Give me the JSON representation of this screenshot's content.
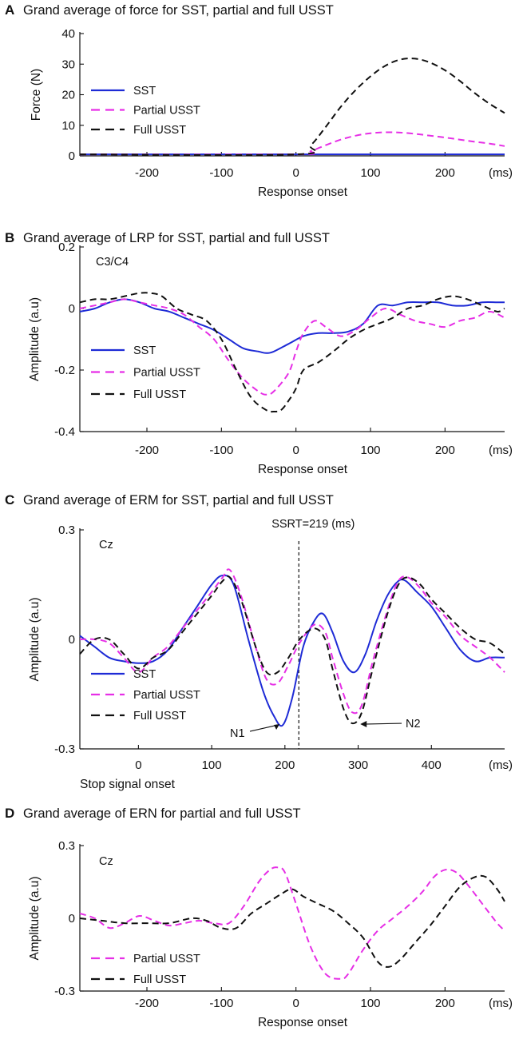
{
  "chart_data": [
    {
      "type": "line",
      "letter": "A",
      "title": "Grand average of force for SST, partial and full USST",
      "xlabel": "Response onset",
      "ylabel": "Force (N)",
      "x_unit": "(ms)",
      "xlim": [
        -290,
        280
      ],
      "ylim": [
        0,
        40
      ],
      "xticks": [
        -200,
        -100,
        0,
        100,
        200
      ],
      "xtick_labels": [
        "-200",
        "-100",
        "0",
        "100",
        "200"
      ],
      "yticks": [
        0,
        10,
        20,
        30,
        40
      ],
      "ytick_labels": [
        "0",
        "10",
        "20",
        "30",
        "40"
      ],
      "legend": [
        "SST",
        "Partial USST",
        "Full USST"
      ],
      "series": [
        {
          "name": "SST",
          "color": "#1e2bd6",
          "dash": "solid",
          "x": [
            -290,
            280
          ],
          "y": [
            0.5,
            0.5
          ]
        },
        {
          "name": "Partial USST",
          "color": "#e62fe6",
          "dash": "dashed",
          "x": [
            -290,
            0,
            20,
            40,
            60,
            80,
            100,
            120,
            140,
            160,
            180,
            200,
            220,
            240,
            260,
            280
          ],
          "y": [
            0.5,
            0.5,
            1.6,
            3.5,
            5.3,
            6.6,
            7.4,
            7.7,
            7.6,
            7.2,
            6.6,
            6.0,
            5.3,
            4.6,
            4.0,
            3.2
          ]
        },
        {
          "name": "Full USST",
          "color": "#111111",
          "dash": "dashed",
          "x": [
            -290,
            0,
            20,
            40,
            60,
            80,
            100,
            120,
            140,
            160,
            180,
            200,
            220,
            240,
            260,
            280
          ],
          "y": [
            0.5,
            0.5,
            3.5,
            9.5,
            16,
            21.5,
            26,
            29.5,
            31.5,
            31.8,
            30.5,
            28,
            24.5,
            20.5,
            17,
            14
          ]
        }
      ]
    },
    {
      "type": "line",
      "letter": "B",
      "title": "Grand average of LRP for SST, partial and full USST",
      "xlabel": "Response onset",
      "ylabel": "Amplitude (a.u)",
      "x_unit": "(ms)",
      "annotation": "C3/C4",
      "xlim": [
        -290,
        280
      ],
      "ylim": [
        -0.4,
        0.2
      ],
      "xticks": [
        -200,
        -100,
        0,
        100,
        200
      ],
      "xtick_labels": [
        "-200",
        "-100",
        "0",
        "100",
        "200"
      ],
      "yticks": [
        -0.4,
        -0.2,
        0,
        0.2
      ],
      "ytick_labels": [
        "-0.4",
        "-0.2",
        "0",
        "0.2"
      ],
      "legend": [
        "SST",
        "Partial USST",
        "Full USST"
      ],
      "series": [
        {
          "name": "SST",
          "color": "#1e2bd6",
          "dash": "solid",
          "x": [
            -290,
            -270,
            -250,
            -230,
            -210,
            -190,
            -170,
            -150,
            -130,
            -110,
            -90,
            -70,
            -50,
            -40,
            -30,
            -10,
            10,
            30,
            50,
            70,
            90,
            110,
            130,
            150,
            170,
            190,
            210,
            230,
            250,
            270,
            280
          ],
          "y": [
            -0.01,
            0.0,
            0.02,
            0.03,
            0.02,
            0.0,
            -0.01,
            -0.03,
            -0.05,
            -0.07,
            -0.1,
            -0.13,
            -0.14,
            -0.145,
            -0.14,
            -0.115,
            -0.09,
            -0.08,
            -0.08,
            -0.075,
            -0.05,
            0.01,
            0.01,
            0.02,
            0.02,
            0.02,
            0.01,
            0.01,
            0.02,
            0.02,
            0.02
          ]
        },
        {
          "name": "Partial USST",
          "color": "#e62fe6",
          "dash": "dashed",
          "x": [
            -290,
            -270,
            -250,
            -230,
            -210,
            -190,
            -170,
            -150,
            -130,
            -110,
            -90,
            -70,
            -50,
            -40,
            -30,
            -10,
            0,
            10,
            25,
            40,
            60,
            80,
            100,
            120,
            140,
            160,
            180,
            200,
            220,
            240,
            260,
            280
          ],
          "y": [
            0.0,
            0.01,
            0.02,
            0.03,
            0.02,
            0.01,
            0.0,
            -0.02,
            -0.06,
            -0.1,
            -0.17,
            -0.23,
            -0.27,
            -0.28,
            -0.27,
            -0.21,
            -0.14,
            -0.08,
            -0.04,
            -0.06,
            -0.09,
            -0.07,
            -0.03,
            0.0,
            -0.02,
            -0.04,
            -0.05,
            -0.06,
            -0.04,
            -0.03,
            -0.01,
            -0.03
          ]
        },
        {
          "name": "Full USST",
          "color": "#111111",
          "dash": "dashed",
          "x": [
            -290,
            -270,
            -250,
            -230,
            -210,
            -195,
            -180,
            -160,
            -140,
            -120,
            -100,
            -80,
            -60,
            -40,
            -30,
            -20,
            -10,
            0,
            10,
            30,
            50,
            70,
            90,
            110,
            130,
            150,
            170,
            190,
            210,
            230,
            250,
            270,
            280
          ],
          "y": [
            0.02,
            0.03,
            0.03,
            0.04,
            0.05,
            0.05,
            0.04,
            0.0,
            -0.02,
            -0.04,
            -0.1,
            -0.2,
            -0.29,
            -0.33,
            -0.335,
            -0.33,
            -0.3,
            -0.26,
            -0.2,
            -0.175,
            -0.14,
            -0.1,
            -0.07,
            -0.05,
            -0.03,
            0.0,
            0.01,
            0.03,
            0.04,
            0.03,
            0.01,
            -0.01,
            0.0
          ]
        }
      ]
    },
    {
      "type": "line",
      "letter": "C",
      "title": "Grand average of ERM for SST, partial and full USST",
      "xlabel": "Stop signal onset",
      "ylabel": "Amplitude (a.u)",
      "x_unit": "(ms)",
      "annotation": "Cz",
      "vline": {
        "x": 219,
        "label": "SSRT=219 (ms)"
      },
      "peak_labels": [
        {
          "label": "N1",
          "x": 197,
          "y": -0.23
        },
        {
          "label": "N2",
          "x": 292,
          "y": -0.23
        }
      ],
      "xlim": [
        -80,
        500
      ],
      "ylim": [
        -0.3,
        0.3
      ],
      "xticks": [
        0,
        100,
        200,
        300,
        400
      ],
      "xtick_labels": [
        "0",
        "100",
        "200",
        "300",
        "400"
      ],
      "yticks": [
        -0.3,
        0,
        0.3
      ],
      "ytick_labels": [
        "-0.3",
        "0",
        "0.3"
      ],
      "legend": [
        "SST",
        "Partial USST",
        "Full USST"
      ],
      "series": [
        {
          "name": "SST",
          "color": "#1e2bd6",
          "dash": "solid",
          "x": [
            -80,
            -60,
            -40,
            -20,
            0,
            20,
            40,
            60,
            80,
            100,
            115,
            130,
            150,
            170,
            185,
            197,
            210,
            225,
            240,
            252,
            265,
            280,
            295,
            310,
            325,
            340,
            355,
            365,
            380,
            400,
            420,
            440,
            460,
            480,
            500
          ],
          "y": [
            0.01,
            -0.02,
            -0.05,
            -0.06,
            -0.065,
            -0.06,
            -0.03,
            0.03,
            0.09,
            0.15,
            0.175,
            0.15,
            0.0,
            -0.14,
            -0.21,
            -0.235,
            -0.16,
            -0.02,
            0.05,
            0.07,
            0.02,
            -0.06,
            -0.09,
            -0.04,
            0.05,
            0.12,
            0.16,
            0.16,
            0.13,
            0.09,
            0.03,
            -0.03,
            -0.06,
            -0.05,
            -0.05
          ]
        },
        {
          "name": "Partial USST",
          "color": "#e62fe6",
          "dash": "dashed",
          "x": [
            -80,
            -60,
            -40,
            -20,
            0,
            20,
            40,
            60,
            80,
            100,
            115,
            125,
            140,
            160,
            175,
            190,
            205,
            220,
            240,
            255,
            265,
            280,
            292,
            305,
            320,
            340,
            355,
            368,
            385,
            400,
            420,
            440,
            460,
            480,
            500
          ],
          "y": [
            0.0,
            0.0,
            -0.01,
            -0.05,
            -0.09,
            -0.05,
            -0.02,
            0.03,
            0.08,
            0.13,
            0.17,
            0.19,
            0.12,
            -0.02,
            -0.11,
            -0.12,
            -0.07,
            -0.01,
            0.04,
            0.02,
            -0.05,
            -0.15,
            -0.2,
            -0.18,
            -0.06,
            0.08,
            0.16,
            0.17,
            0.14,
            0.1,
            0.06,
            0.01,
            -0.02,
            -0.05,
            -0.09
          ]
        },
        {
          "name": "Full USST",
          "color": "#111111",
          "dash": "dashed",
          "x": [
            -80,
            -60,
            -40,
            -20,
            0,
            20,
            40,
            60,
            80,
            100,
            115,
            125,
            140,
            160,
            175,
            190,
            205,
            220,
            240,
            255,
            265,
            280,
            292,
            305,
            320,
            340,
            355,
            368,
            385,
            400,
            420,
            440,
            460,
            480,
            500
          ],
          "y": [
            -0.04,
            0.0,
            0.0,
            -0.04,
            -0.08,
            -0.05,
            -0.03,
            0.02,
            0.07,
            0.12,
            0.16,
            0.17,
            0.11,
            -0.02,
            -0.09,
            -0.09,
            -0.05,
            0.0,
            0.03,
            0.0,
            -0.08,
            -0.19,
            -0.23,
            -0.2,
            -0.08,
            0.07,
            0.15,
            0.17,
            0.15,
            0.11,
            0.07,
            0.03,
            0.0,
            -0.01,
            -0.04
          ]
        }
      ]
    },
    {
      "type": "line",
      "letter": "D",
      "title": "Grand average of ERN for partial and full USST",
      "xlabel": "Response onset",
      "ylabel": "Amplitude (a.u)",
      "x_unit": "(ms)",
      "annotation": "Cz",
      "xlim": [
        -290,
        280
      ],
      "ylim": [
        -0.3,
        0.3
      ],
      "xticks": [
        -200,
        -100,
        0,
        100,
        200
      ],
      "xtick_labels": [
        "-200",
        "-100",
        "0",
        "100",
        "200"
      ],
      "yticks": [
        -0.3,
        0,
        0.3
      ],
      "ytick_labels": [
        "-0.3",
        "0",
        "0.3"
      ],
      "legend": [
        "Partial USST",
        "Full USST"
      ],
      "series": [
        {
          "name": "Partial USST",
          "color": "#e62fe6",
          "dash": "dashed",
          "x": [
            -290,
            -270,
            -250,
            -230,
            -210,
            -190,
            -170,
            -150,
            -130,
            -110,
            -90,
            -70,
            -50,
            -35,
            -25,
            -15,
            0,
            20,
            40,
            60,
            70,
            90,
            110,
            130,
            150,
            170,
            185,
            200,
            215,
            230,
            250,
            270,
            280
          ],
          "y": [
            0.02,
            0.0,
            -0.04,
            -0.02,
            0.01,
            -0.01,
            -0.03,
            -0.02,
            -0.01,
            -0.02,
            -0.02,
            0.05,
            0.15,
            0.2,
            0.21,
            0.19,
            0.06,
            -0.12,
            -0.23,
            -0.25,
            -0.23,
            -0.13,
            -0.05,
            0.0,
            0.05,
            0.11,
            0.17,
            0.2,
            0.19,
            0.14,
            0.06,
            -0.02,
            -0.05
          ]
        },
        {
          "name": "Full USST",
          "color": "#111111",
          "dash": "dashed",
          "x": [
            -290,
            -260,
            -230,
            -200,
            -170,
            -140,
            -120,
            -100,
            -80,
            -60,
            -40,
            -20,
            -5,
            10,
            30,
            50,
            70,
            90,
            110,
            125,
            140,
            160,
            180,
            200,
            220,
            240,
            255,
            270,
            280
          ],
          "y": [
            0.0,
            -0.01,
            -0.02,
            -0.02,
            -0.02,
            0.0,
            -0.01,
            -0.04,
            -0.04,
            0.02,
            0.06,
            0.1,
            0.12,
            0.09,
            0.06,
            0.03,
            -0.02,
            -0.08,
            -0.18,
            -0.2,
            -0.17,
            -0.1,
            -0.03,
            0.05,
            0.13,
            0.17,
            0.17,
            0.12,
            0.07
          ]
        }
      ]
    }
  ]
}
